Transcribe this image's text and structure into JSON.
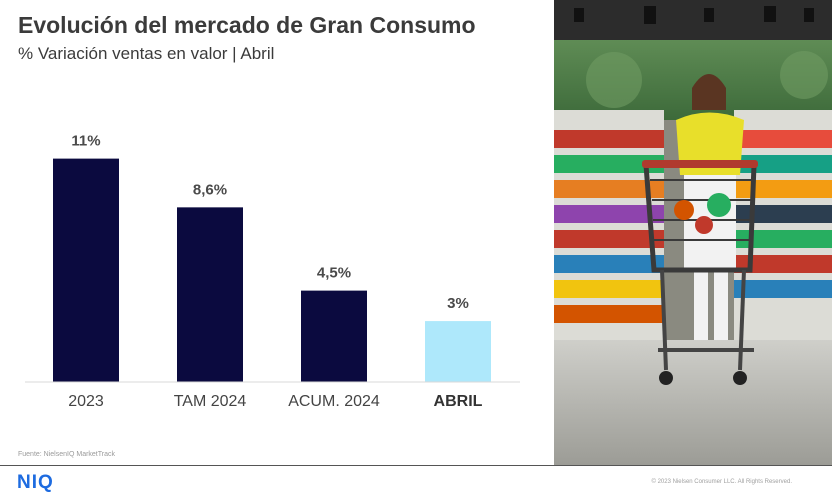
{
  "header": {
    "title": "Evolución del mercado de Gran Consumo",
    "subtitle": "% Variación ventas en valor | Abril"
  },
  "chart_data": {
    "type": "bar",
    "categories": [
      "2023",
      "TAM 2024",
      "ACUM. 2024",
      "ABRIL"
    ],
    "values": [
      11,
      8.6,
      4.5,
      3
    ],
    "value_labels": [
      "11%",
      "8,6%",
      "4,5%",
      "3%"
    ],
    "highlight_index": 3,
    "colors": {
      "default": "#0b0a3f",
      "highlight": "#aee8fb",
      "baseline": "#d9d9d9"
    },
    "grid": false,
    "ylim": [
      0,
      13
    ]
  },
  "footer": {
    "source": "Fuente: NielsenIQ MarketTrack",
    "brand": "NIQ",
    "copyright": "© 2023 Nielsen Consumer LLC. All Rights Reserved."
  },
  "photo": {
    "icon": "supermarket-shopper-photo"
  }
}
